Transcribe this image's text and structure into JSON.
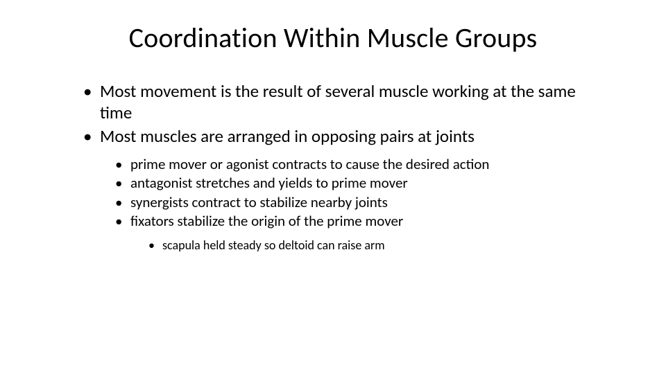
{
  "slide": {
    "background_color": "#ffffff",
    "text_color": "#000000",
    "font_family": "Calibri",
    "title": {
      "text": "Coordination Within Muscle Groups",
      "fontsize": 40,
      "weight": 400,
      "align": "center"
    },
    "bullets_l1": [
      {
        "text": "Most movement is the result of several muscle working at the same time"
      },
      {
        "text": "Most muscles are arranged in opposing pairs at joints"
      }
    ],
    "bullets_l2": [
      {
        "text": "prime mover or agonist contracts to cause the desired action"
      },
      {
        "text": "antagonist stretches and yields to prime mover"
      },
      {
        "text": "synergists contract to stabilize nearby joints"
      },
      {
        "text": "fixators stabilize the origin of the prime mover"
      }
    ],
    "bullets_l3": [
      {
        "text": "scapula held steady so deltoid can raise arm"
      }
    ],
    "typography": {
      "l1_fontsize": 25,
      "l2_fontsize": 21,
      "l3_fontsize": 18,
      "line_height": 1.22
    }
  }
}
